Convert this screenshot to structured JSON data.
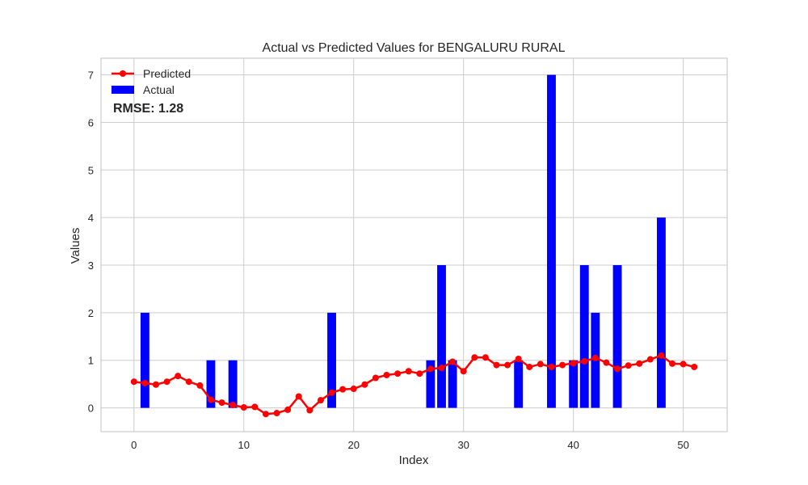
{
  "chart_data": {
    "type": "bar+line",
    "title": "Actual vs Predicted Values for BENGALURU RURAL",
    "xlabel": "Index",
    "ylabel": "Values",
    "xlim": [
      -3,
      54
    ],
    "ylim": [
      -0.5,
      7.35
    ],
    "xticks": [
      0,
      10,
      20,
      30,
      40,
      50
    ],
    "yticks": [
      0,
      1,
      2,
      3,
      4,
      5,
      6,
      7
    ],
    "grid": true,
    "legend_position": "top-left",
    "annotation": "RMSE: 1.28",
    "series": [
      {
        "name": "Predicted",
        "kind": "line",
        "color": "#ff0000",
        "marker": "circle",
        "x": [
          0,
          1,
          2,
          3,
          4,
          5,
          6,
          7,
          8,
          9,
          10,
          11,
          12,
          13,
          14,
          15,
          16,
          17,
          18,
          19,
          20,
          21,
          22,
          23,
          24,
          25,
          26,
          27,
          28,
          29,
          30,
          31,
          32,
          33,
          34,
          35,
          36,
          37,
          38,
          39,
          40,
          41,
          42,
          43,
          44,
          45,
          46,
          47,
          48,
          49,
          50,
          51
        ],
        "values": [
          0.55,
          0.52,
          0.49,
          0.55,
          0.67,
          0.55,
          0.47,
          0.17,
          0.11,
          0.06,
          0.01,
          0.02,
          -0.13,
          -0.11,
          -0.04,
          0.24,
          -0.05,
          0.16,
          0.32,
          0.39,
          0.4,
          0.49,
          0.63,
          0.69,
          0.72,
          0.77,
          0.72,
          0.82,
          0.84,
          0.97,
          0.77,
          1.06,
          1.06,
          0.9,
          0.9,
          1.03,
          0.86,
          0.92,
          0.86,
          0.9,
          0.94,
          0.98,
          1.05,
          0.95,
          0.82,
          0.89,
          0.93,
          1.02,
          1.1,
          0.93,
          0.92,
          0.86
        ]
      },
      {
        "name": "Actual",
        "kind": "bar",
        "color": "#0000ff",
        "x": [
          0,
          1,
          2,
          3,
          4,
          5,
          6,
          7,
          8,
          9,
          10,
          11,
          12,
          13,
          14,
          15,
          16,
          17,
          18,
          19,
          20,
          21,
          22,
          23,
          24,
          25,
          26,
          27,
          28,
          29,
          30,
          31,
          32,
          33,
          34,
          35,
          36,
          37,
          38,
          39,
          40,
          41,
          42,
          43,
          44,
          45,
          46,
          47,
          48,
          49,
          50,
          51
        ],
        "values": [
          0,
          2,
          0,
          0,
          0,
          0,
          0,
          1,
          0,
          1,
          0,
          0,
          0,
          0,
          0,
          0,
          0,
          0,
          2,
          0,
          0,
          0,
          0,
          0,
          0,
          0,
          0,
          1,
          3,
          1,
          0,
          0,
          0,
          0,
          0,
          1,
          0,
          0,
          7,
          0,
          1,
          3,
          2,
          0,
          3,
          0,
          0,
          0,
          4,
          0,
          0,
          0
        ]
      }
    ]
  },
  "colors": {
    "annotation": "#ff0000",
    "grid": "#cccccc",
    "frame": "#cccccc"
  }
}
